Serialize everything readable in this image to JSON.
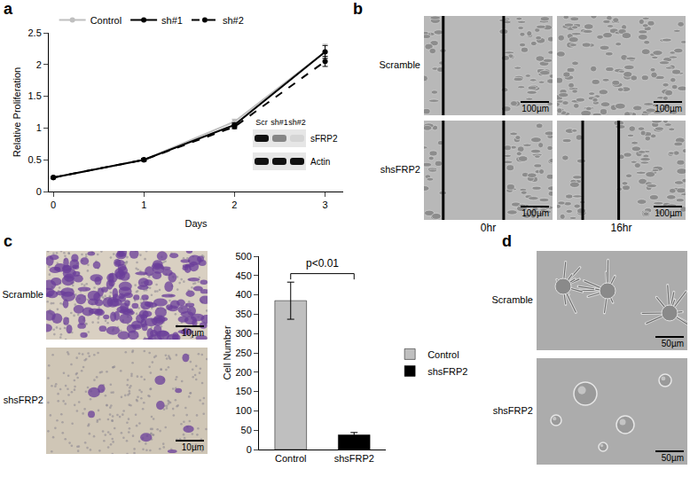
{
  "panel_labels": [
    "a",
    "b",
    "c",
    "d"
  ],
  "chart_data": [
    {
      "type": "line",
      "x": [
        0,
        1,
        2,
        3
      ],
      "x_label": "Days",
      "y_label": "Relative Proliferation",
      "xlim": [
        -0.05,
        3.2
      ],
      "xticks": [
        0,
        1,
        2,
        3
      ],
      "ylim": [
        0,
        2.5
      ],
      "yticks": [
        0,
        0.5,
        1,
        1.5,
        2,
        2.5
      ],
      "grid": false,
      "legend": "top",
      "marker": "circle",
      "series": [
        {
          "name": "Control",
          "color": "#bfbfbf",
          "line_style": "solid",
          "values": [
            0.22,
            0.5,
            1.1,
            2.2
          ],
          "errors": [
            0.01,
            0.02,
            0.04,
            0.12
          ]
        },
        {
          "name": "sh#1",
          "color": "#000000",
          "line_style": "solid",
          "values": [
            0.22,
            0.5,
            1.05,
            2.2
          ],
          "errors": [
            0.01,
            0.02,
            0.03,
            0.1
          ]
        },
        {
          "name": "sh#2",
          "color": "#000000",
          "line_style": "dash",
          "values": [
            0.22,
            0.5,
            1.02,
            2.05
          ],
          "errors": [
            0.01,
            0.02,
            0.03,
            0.08
          ]
        }
      ]
    },
    {
      "type": "bar",
      "categories": [
        "Control",
        "shsFRP2"
      ],
      "values": [
        385,
        38
      ],
      "errors": [
        48,
        6
      ],
      "colors": [
        "#bfbfbf",
        "#000000"
      ],
      "y_label": "Cell Number",
      "ylim": [
        0,
        500
      ],
      "yticks": [
        0,
        50,
        100,
        150,
        200,
        250,
        300,
        350,
        400,
        450,
        500
      ],
      "grid": false,
      "legend": "right",
      "annotations": [
        {
          "text": "p<0.01",
          "from": "Control",
          "to": "shsFRP2",
          "y": 455
        }
      ]
    }
  ],
  "blot": {
    "lanes": [
      "Scr",
      "sh#1",
      "sh#2"
    ],
    "rows": [
      {
        "name": "sFRP2",
        "intensity": [
          1,
          0.45,
          0.08
        ]
      },
      {
        "name": "Actin",
        "intensity": [
          1,
          1,
          1
        ]
      }
    ]
  },
  "panel_b": {
    "rows": [
      "Scramble",
      "shsFRP2"
    ],
    "columns": [
      "0hr",
      "16hr"
    ],
    "scale_bar": "100µm",
    "wound_lines": [
      [
        true,
        false
      ],
      [
        true,
        true
      ]
    ]
  },
  "panel_c_images": {
    "rows": [
      "Scramble",
      "shsFRP2"
    ],
    "scale_bar": "10µm"
  },
  "panel_d": {
    "rows": [
      "Scramble",
      "shsFRP2"
    ],
    "scale_bar": "50µm"
  }
}
